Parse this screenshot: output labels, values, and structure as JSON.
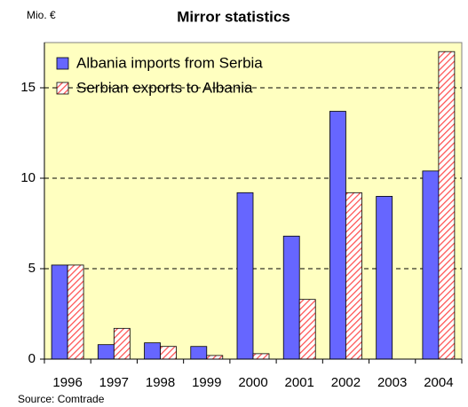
{
  "chart_data": {
    "type": "bar",
    "title": "Mirror statistics",
    "y_axis_label": "Mio. €",
    "source": "Source: Comtrade",
    "categories": [
      "1996",
      "1997",
      "1998",
      "1999",
      "2000",
      "2001",
      "2002",
      "2003",
      "2004"
    ],
    "series": [
      {
        "name": "Albania imports from Serbia",
        "color": "#6666ff",
        "values": [
          5.2,
          0.8,
          0.9,
          0.7,
          9.2,
          6.8,
          13.7,
          9.0,
          10.4
        ]
      },
      {
        "name": "Serbian exports to Albania",
        "color": "#ff5050",
        "hatched": true,
        "values": [
          5.2,
          1.7,
          0.7,
          0.2,
          0.3,
          3.3,
          9.2,
          null,
          17.0
        ]
      }
    ],
    "ylim": [
      0,
      17.5
    ],
    "yticks": [
      0,
      5,
      10,
      15
    ],
    "grid": true,
    "legend": "top-left",
    "background": "#ffffc0"
  }
}
